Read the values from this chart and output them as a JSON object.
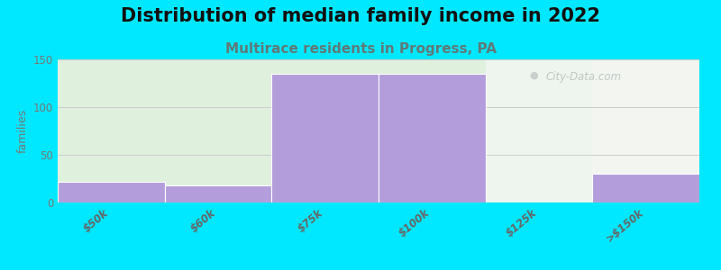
{
  "title": "Distribution of median family income in 2022",
  "subtitle": "Multirace residents in Progress, PA",
  "categories": [
    "$50k",
    "$60k",
    "$75k",
    "$100k",
    "$125k",
    ">$150k"
  ],
  "values": [
    22,
    18,
    135,
    135,
    0,
    30
  ],
  "bar_color": "#b39ddb",
  "bar_edge_color": "#ffffff",
  "background_color": "#00e8ff",
  "ylabel": "families",
  "ylim": [
    0,
    150
  ],
  "yticks": [
    0,
    50,
    100,
    150
  ],
  "title_fontsize": 15,
  "subtitle_fontsize": 11,
  "subtitle_color": "#5f7a78",
  "title_color": "#111111",
  "watermark_text": "City-Data.com",
  "bar_width": 1.0,
  "bg_colors": [
    "#dff0dd",
    "#dff0dd",
    "#dff0dd",
    "#dff0dd",
    "#eef5ee",
    "#f2f5f0"
  ],
  "ytick_color": "#777777",
  "xtick_color": "#666666",
  "grid_color": "#cccccc"
}
